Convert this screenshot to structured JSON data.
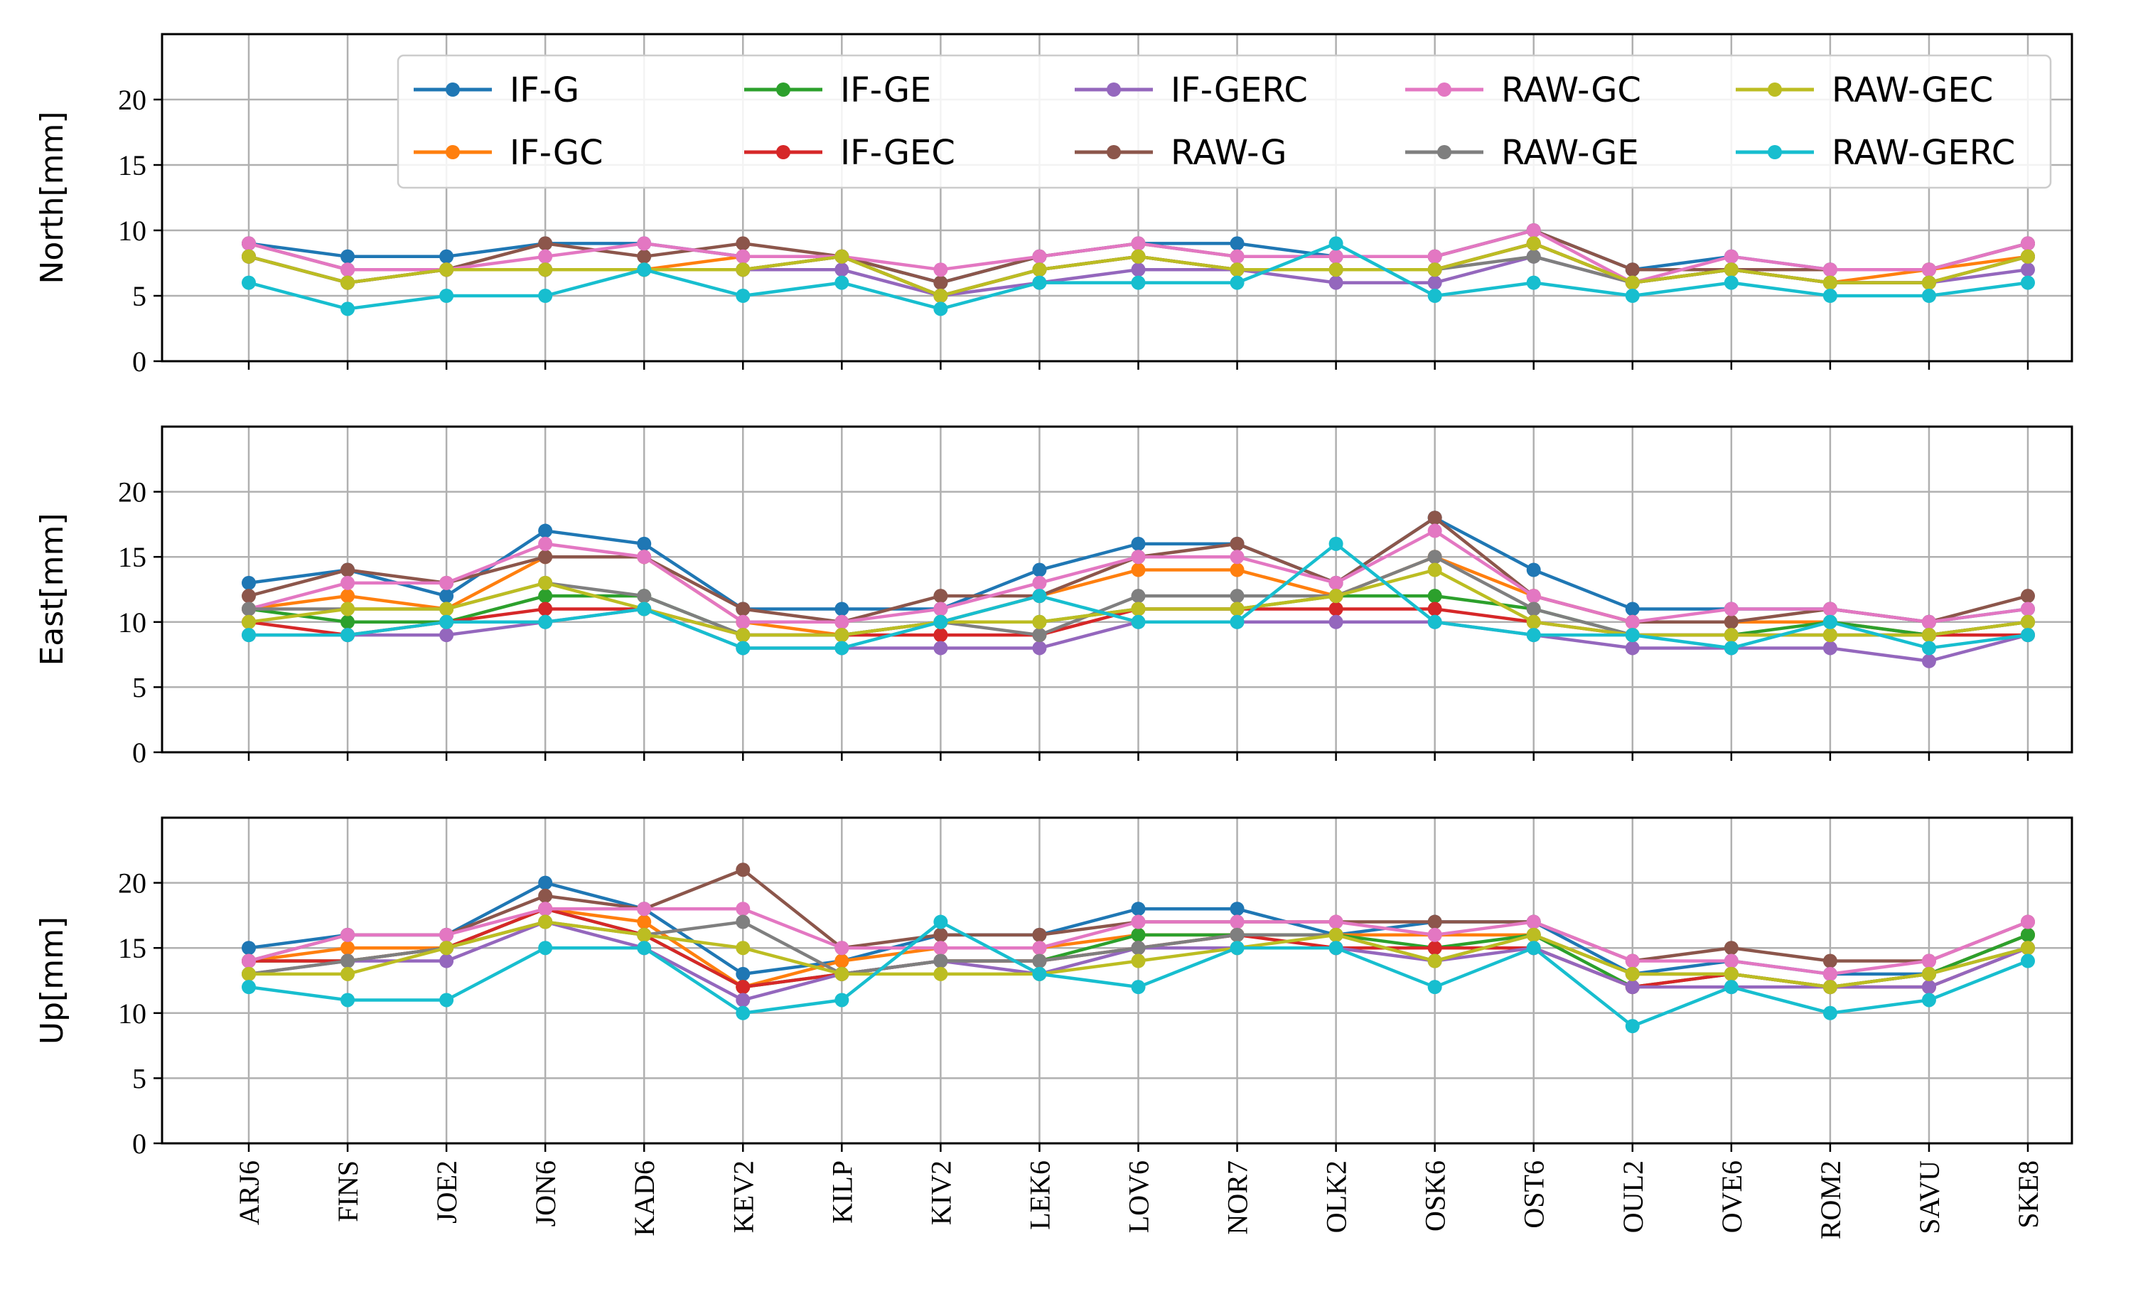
{
  "chart_data": [
    {
      "type": "line",
      "ylabel": "North[mm]",
      "ylim": [
        0,
        25
      ],
      "yticks": [
        "0",
        "5",
        "10",
        "15",
        "20"
      ],
      "grid": true,
      "legend": "top-right",
      "categories": [
        "ARJ6",
        "FINS",
        "JOE2",
        "JON6",
        "KAD6",
        "KEV2",
        "KILP",
        "KIV2",
        "LEK6",
        "LOV6",
        "NOR7",
        "OLK2",
        "OSK6",
        "OST6",
        "OUL2",
        "OVE6",
        "ROM2",
        "SAVU",
        "SKE8"
      ],
      "series": [
        {
          "name": "IF-G",
          "color": "#1f77b4",
          "values": [
            9,
            8,
            8,
            9,
            9,
            8,
            8,
            6,
            8,
            9,
            9,
            8,
            8,
            10,
            7,
            8,
            7,
            7,
            9
          ]
        },
        {
          "name": "IF-GC",
          "color": "#ff7f0e",
          "values": [
            8,
            6,
            7,
            7,
            7,
            8,
            8,
            5,
            7,
            8,
            7,
            7,
            7,
            9,
            6,
            7,
            6,
            7,
            8
          ]
        },
        {
          "name": "IF-GE",
          "color": "#2ca02c",
          "values": [
            8,
            6,
            7,
            7,
            7,
            7,
            8,
            5,
            7,
            8,
            7,
            7,
            7,
            9,
            6,
            7,
            6,
            6,
            8
          ]
        },
        {
          "name": "IF-GEC",
          "color": "#d62728",
          "values": [
            8,
            6,
            7,
            7,
            7,
            7,
            8,
            5,
            7,
            8,
            7,
            7,
            7,
            9,
            6,
            7,
            6,
            6,
            8
          ]
        },
        {
          "name": "IF-GERC",
          "color": "#9467bd",
          "values": [
            8,
            6,
            7,
            7,
            7,
            7,
            7,
            5,
            6,
            7,
            7,
            6,
            6,
            8,
            6,
            7,
            6,
            6,
            7
          ]
        },
        {
          "name": "RAW-G",
          "color": "#8c564b",
          "values": [
            9,
            7,
            7,
            9,
            8,
            9,
            8,
            6,
            8,
            9,
            8,
            8,
            8,
            10,
            7,
            7,
            7,
            7,
            9
          ]
        },
        {
          "name": "RAW-GC",
          "color": "#e377c2",
          "values": [
            9,
            7,
            7,
            8,
            9,
            8,
            8,
            7,
            8,
            9,
            8,
            8,
            8,
            10,
            6,
            8,
            7,
            7,
            9
          ]
        },
        {
          "name": "RAW-GE",
          "color": "#7f7f7f",
          "values": [
            8,
            6,
            7,
            7,
            7,
            7,
            8,
            5,
            7,
            8,
            7,
            7,
            7,
            8,
            6,
            7,
            6,
            6,
            8
          ]
        },
        {
          "name": "RAW-GEC",
          "color": "#bcbd22",
          "values": [
            8,
            6,
            7,
            7,
            7,
            7,
            8,
            5,
            7,
            8,
            7,
            7,
            7,
            9,
            6,
            7,
            6,
            6,
            8
          ]
        },
        {
          "name": "RAW-GERC",
          "color": "#17becf",
          "values": [
            6,
            4,
            5,
            5,
            7,
            5,
            6,
            4,
            6,
            6,
            6,
            9,
            5,
            6,
            5,
            6,
            5,
            5,
            6
          ]
        }
      ]
    },
    {
      "type": "line",
      "ylabel": "East[mm]",
      "ylim": [
        0,
        25
      ],
      "yticks": [
        "0",
        "5",
        "10",
        "15",
        "20"
      ],
      "grid": true,
      "categories": [
        "ARJ6",
        "FINS",
        "JOE2",
        "JON6",
        "KAD6",
        "KEV2",
        "KILP",
        "KIV2",
        "LEK6",
        "LOV6",
        "NOR7",
        "OLK2",
        "OSK6",
        "OST6",
        "OUL2",
        "OVE6",
        "ROM2",
        "SAVU",
        "SKE8"
      ],
      "series": [
        {
          "name": "IF-G",
          "color": "#1f77b4",
          "values": [
            13,
            14,
            12,
            17,
            16,
            11,
            11,
            11,
            14,
            16,
            16,
            13,
            18,
            14,
            11,
            11,
            11,
            10,
            11
          ]
        },
        {
          "name": "IF-GC",
          "color": "#ff7f0e",
          "values": [
            11,
            12,
            11,
            15,
            15,
            10,
            9,
            10,
            12,
            14,
            14,
            12,
            15,
            12,
            10,
            10,
            10,
            9,
            10
          ]
        },
        {
          "name": "IF-GE",
          "color": "#2ca02c",
          "values": [
            11,
            10,
            10,
            12,
            12,
            9,
            9,
            10,
            10,
            11,
            11,
            12,
            12,
            11,
            9,
            9,
            10,
            9,
            10
          ]
        },
        {
          "name": "IF-GEC",
          "color": "#d62728",
          "values": [
            10,
            9,
            10,
            11,
            11,
            9,
            9,
            9,
            9,
            11,
            11,
            11,
            11,
            10,
            9,
            9,
            9,
            9,
            9
          ]
        },
        {
          "name": "IF-GERC",
          "color": "#9467bd",
          "values": [
            9,
            9,
            9,
            10,
            11,
            8,
            8,
            8,
            8,
            10,
            10,
            10,
            10,
            9,
            8,
            8,
            8,
            7,
            9
          ]
        },
        {
          "name": "RAW-G",
          "color": "#8c564b",
          "values": [
            12,
            14,
            13,
            15,
            15,
            11,
            10,
            12,
            12,
            15,
            16,
            13,
            18,
            12,
            10,
            10,
            11,
            10,
            12
          ]
        },
        {
          "name": "RAW-GC",
          "color": "#e377c2",
          "values": [
            11,
            13,
            13,
            16,
            15,
            10,
            10,
            11,
            13,
            15,
            15,
            13,
            17,
            12,
            10,
            11,
            11,
            10,
            11
          ]
        },
        {
          "name": "RAW-GE",
          "color": "#7f7f7f",
          "values": [
            11,
            11,
            11,
            13,
            12,
            9,
            9,
            10,
            9,
            12,
            12,
            12,
            15,
            11,
            9,
            9,
            9,
            9,
            10
          ]
        },
        {
          "name": "RAW-GEC",
          "color": "#bcbd22",
          "values": [
            10,
            11,
            11,
            13,
            11,
            9,
            9,
            10,
            10,
            11,
            11,
            12,
            14,
            10,
            9,
            9,
            9,
            9,
            10
          ]
        },
        {
          "name": "RAW-GERC",
          "color": "#17becf",
          "values": [
            9,
            9,
            10,
            10,
            11,
            8,
            8,
            10,
            12,
            10,
            10,
            16,
            10,
            9,
            9,
            8,
            10,
            8,
            9
          ]
        }
      ]
    },
    {
      "type": "line",
      "ylabel": "Up[mm]",
      "ylim": [
        0,
        25
      ],
      "yticks": [
        "0",
        "5",
        "10",
        "15",
        "20"
      ],
      "grid": true,
      "categories": [
        "ARJ6",
        "FINS",
        "JOE2",
        "JON6",
        "KAD6",
        "KEV2",
        "KILP",
        "KIV2",
        "LEK6",
        "LOV6",
        "NOR7",
        "OLK2",
        "OSK6",
        "OST6",
        "OUL2",
        "OVE6",
        "ROM2",
        "SAVU",
        "SKE8"
      ],
      "series": [
        {
          "name": "IF-G",
          "color": "#1f77b4",
          "values": [
            15,
            16,
            16,
            20,
            18,
            13,
            14,
            16,
            16,
            18,
            18,
            16,
            17,
            17,
            13,
            14,
            13,
            13,
            16
          ]
        },
        {
          "name": "IF-GC",
          "color": "#ff7f0e",
          "values": [
            14,
            15,
            15,
            18,
            17,
            12,
            14,
            15,
            15,
            16,
            16,
            16,
            16,
            16,
            13,
            13,
            12,
            13,
            16
          ]
        },
        {
          "name": "IF-GE",
          "color": "#2ca02c",
          "values": [
            14,
            14,
            15,
            18,
            16,
            12,
            13,
            14,
            14,
            16,
            16,
            16,
            15,
            16,
            12,
            13,
            12,
            13,
            16
          ]
        },
        {
          "name": "IF-GEC",
          "color": "#d62728",
          "values": [
            14,
            14,
            15,
            18,
            16,
            12,
            13,
            14,
            14,
            15,
            16,
            15,
            15,
            15,
            12,
            13,
            12,
            12,
            15
          ]
        },
        {
          "name": "IF-GERC",
          "color": "#9467bd",
          "values": [
            13,
            14,
            14,
            17,
            15,
            11,
            13,
            14,
            13,
            15,
            15,
            15,
            14,
            15,
            12,
            12,
            12,
            12,
            15
          ]
        },
        {
          "name": "RAW-G",
          "color": "#8c564b",
          "values": [
            14,
            16,
            16,
            19,
            18,
            21,
            15,
            16,
            16,
            17,
            17,
            17,
            17,
            17,
            14,
            15,
            14,
            14,
            17
          ]
        },
        {
          "name": "RAW-GC",
          "color": "#e377c2",
          "values": [
            14,
            16,
            16,
            18,
            18,
            18,
            15,
            15,
            15,
            17,
            17,
            17,
            16,
            17,
            14,
            14,
            13,
            14,
            17
          ]
        },
        {
          "name": "RAW-GE",
          "color": "#7f7f7f",
          "values": [
            13,
            14,
            15,
            17,
            16,
            17,
            13,
            14,
            14,
            15,
            16,
            16,
            14,
            16,
            13,
            13,
            12,
            13,
            15
          ]
        },
        {
          "name": "RAW-GEC",
          "color": "#bcbd22",
          "values": [
            13,
            13,
            15,
            17,
            16,
            15,
            13,
            13,
            13,
            14,
            15,
            16,
            14,
            16,
            13,
            13,
            12,
            13,
            15
          ]
        },
        {
          "name": "RAW-GERC",
          "color": "#17becf",
          "values": [
            12,
            11,
            11,
            15,
            15,
            10,
            11,
            17,
            13,
            12,
            15,
            15,
            12,
            15,
            9,
            12,
            10,
            11,
            14
          ]
        }
      ]
    }
  ]
}
